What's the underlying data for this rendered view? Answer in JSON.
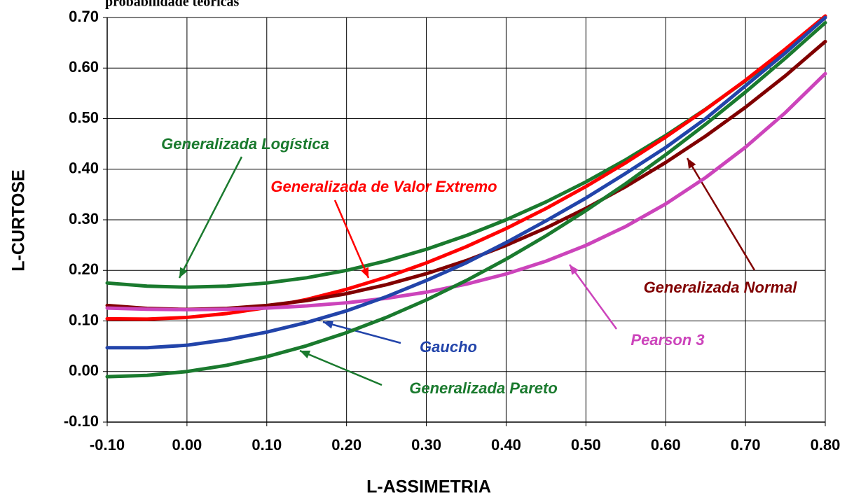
{
  "chart_data": {
    "type": "line",
    "title": "probabilidade teóricas",
    "x_label": "L-ASSIMETRIA",
    "y_label": "L-CURTOSE",
    "x": [
      -0.1,
      -0.05,
      0,
      0.05,
      0.1,
      0.15,
      0.2,
      0.25,
      0.3,
      0.35,
      0.4,
      0.45,
      0.5,
      0.55,
      0.6,
      0.65,
      0.7,
      0.75,
      0.8
    ],
    "series": [
      {
        "name": "Generalizada Logística",
        "color": "#1a7a2e",
        "values": [
          0.175,
          0.1688,
          0.1667,
          0.1688,
          0.175,
          0.1854,
          0.2,
          0.2188,
          0.2417,
          0.2688,
          0.3,
          0.3354,
          0.375,
          0.4188,
          0.4667,
          0.5188,
          0.575,
          0.6354,
          0.7
        ]
      },
      {
        "name": "Generalizada de Valor Extremo",
        "color": "#ff0000",
        "values": [
          0.1044,
          0.1036,
          0.107,
          0.1147,
          0.1265,
          0.1425,
          0.1626,
          0.1867,
          0.2148,
          0.2468,
          0.2827,
          0.3224,
          0.3658,
          0.4129,
          0.4637,
          0.5181,
          0.576,
          0.6376,
          0.7029
        ]
      },
      {
        "name": "Generalizada Normal",
        "color": "#800000",
        "values": [
          0.1306,
          0.1247,
          0.1228,
          0.1247,
          0.1306,
          0.1403,
          0.154,
          0.1717,
          0.1935,
          0.2193,
          0.2495,
          0.2839,
          0.3226,
          0.3657,
          0.4134,
          0.4655,
          0.5226,
          0.5848,
          0.6525
        ]
      },
      {
        "name": "Pearson 3",
        "color": "#cc44bb",
        "values": [
          0.1255,
          0.1232,
          0.1224,
          0.1232,
          0.1255,
          0.1297,
          0.1359,
          0.1448,
          0.1569,
          0.1727,
          0.1929,
          0.2182,
          0.2494,
          0.2869,
          0.3314,
          0.3835,
          0.4436,
          0.512,
          0.589
        ]
      },
      {
        "name": "Gaucho",
        "color": "#2244aa",
        "values": [
          0.047,
          0.047,
          0.052,
          0.063,
          0.078,
          0.097,
          0.12,
          0.148,
          0.18,
          0.215,
          0.255,
          0.298,
          0.343,
          0.392,
          0.443,
          0.5,
          0.565,
          0.63,
          0.7
        ]
      },
      {
        "name": "Generalizada Pareto",
        "color": "#1a7a2e",
        "values": [
          -0.0102,
          -0.0076,
          0,
          0.0124,
          0.0294,
          0.051,
          0.0769,
          0.1071,
          0.1415,
          0.1799,
          0.2222,
          0.2683,
          0.3182,
          0.3716,
          0.4286,
          0.4889,
          0.5526,
          0.6196,
          0.6897
        ]
      }
    ],
    "xlim": [
      -0.1,
      0.8
    ],
    "ylim": [
      -0.1,
      0.7
    ],
    "xticks": [
      {
        "value": -0.1,
        "label": "-0.10"
      },
      {
        "value": 0,
        "label": "0.00"
      },
      {
        "value": 0.1,
        "label": "0.10"
      },
      {
        "value": 0.2,
        "label": "0.20"
      },
      {
        "value": 0.3,
        "label": "0.30"
      },
      {
        "value": 0.4,
        "label": "0.40"
      },
      {
        "value": 0.5,
        "label": "0.50"
      },
      {
        "value": 0.6,
        "label": "0.60"
      },
      {
        "value": 0.7,
        "label": "0.70"
      },
      {
        "value": 0.8,
        "label": "0.80"
      }
    ],
    "yticks": [
      {
        "value": -0.1,
        "label": "-0.10"
      },
      {
        "value": 0,
        "label": "0.00"
      },
      {
        "value": 0.1,
        "label": "0.10"
      },
      {
        "value": 0.2,
        "label": "0.20"
      },
      {
        "value": 0.3,
        "label": "0.30"
      },
      {
        "value": 0.4,
        "label": "0.40"
      },
      {
        "value": 0.5,
        "label": "0.50"
      },
      {
        "value": 0.6,
        "label": "0.60"
      },
      {
        "value": 0.7,
        "label": "0.70"
      }
    ],
    "grid": true
  }
}
